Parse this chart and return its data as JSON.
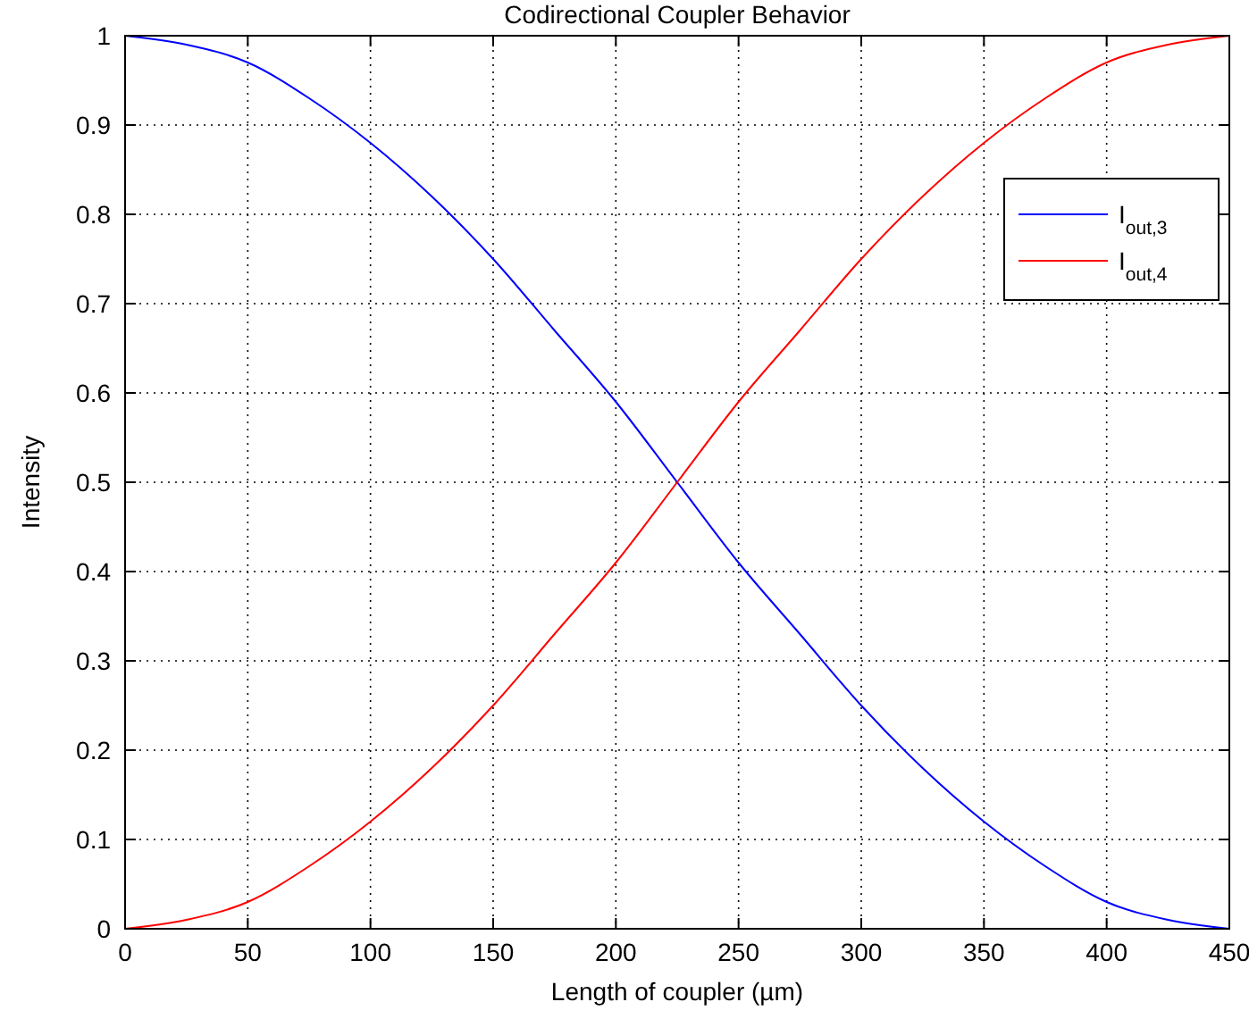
{
  "chart_data": {
    "type": "line",
    "title": "Codirectional Coupler Behavior",
    "xlabel": "Length of coupler (µm)",
    "ylabel": "Intensity",
    "x": [
      0,
      25,
      50,
      75,
      100,
      125,
      150,
      175,
      200,
      225,
      250,
      275,
      300,
      325,
      350,
      375,
      400,
      425,
      450
    ],
    "series": [
      {
        "name": "I$_{out,3}$",
        "color": "#0000ff",
        "values": [
          1,
          0.99,
          0.97,
          0.93,
          0.88,
          0.82,
          0.75,
          0.67,
          0.59,
          0.5,
          0.41,
          0.33,
          0.25,
          0.18,
          0.12,
          0.07,
          0.03,
          0.01,
          0
        ]
      },
      {
        "name": "I$_{out,4}$",
        "color": "#ff0000",
        "values": [
          0,
          0.01,
          0.03,
          0.07,
          0.12,
          0.18,
          0.25,
          0.33,
          0.41,
          0.5,
          0.59,
          0.67,
          0.75,
          0.82,
          0.88,
          0.93,
          0.97,
          0.99,
          1
        ]
      }
    ],
    "xlim": [
      0,
      450
    ],
    "xticks": [
      0,
      50,
      100,
      150,
      200,
      250,
      300,
      350,
      400,
      450
    ],
    "ylim": [
      0,
      1
    ],
    "yticks": [
      0,
      0.1,
      0.2,
      0.3,
      0.4,
      0.5,
      0.6,
      0.7,
      0.8,
      0.9,
      1
    ],
    "grid": true,
    "legend": "top right",
    "line_style": "solid",
    "marker": "none"
  }
}
